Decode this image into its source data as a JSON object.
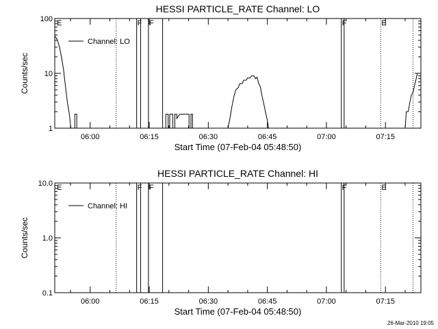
{
  "footer": {
    "timestamp": "26-Mar-2010 19:05"
  },
  "chart_data": [
    {
      "type": "line",
      "title": "HESSI PARTICLE_RATE Channel: LO",
      "xlabel": "Start Time (07-Feb-04 05:48:50)",
      "ylabel": "Counts/sec",
      "yscale": "log",
      "ylim": [
        1,
        100
      ],
      "xlim_minutes": [
        -9,
        84
      ],
      "x_ticks": [
        {
          "t": 0,
          "label": "06:00"
        },
        {
          "t": 15,
          "label": "06:15"
        },
        {
          "t": 30,
          "label": "06:30"
        },
        {
          "t": 45,
          "label": "06:45"
        },
        {
          "t": 60,
          "label": "07:00"
        },
        {
          "t": 75,
          "label": "07:15"
        }
      ],
      "y_ticks": [
        {
          "v": 1,
          "label": "1"
        },
        {
          "v": 10,
          "label": "10"
        },
        {
          "v": 100,
          "label": "100"
        }
      ],
      "legend": {
        "position": "top-left",
        "entries": [
          "Channel: LO"
        ]
      },
      "flags": [
        {
          "t": -8.6,
          "label": "E",
          "style": "none"
        },
        {
          "t": 6.6,
          "label": "",
          "style": "dotted"
        },
        {
          "t": 11.8,
          "label": "F",
          "style": "solid"
        },
        {
          "t": 12.8,
          "label": "",
          "style": "solid"
        },
        {
          "t": 14.8,
          "label": "F",
          "style": "solid"
        },
        {
          "t": 18.4,
          "label": "",
          "style": "solid"
        },
        {
          "t": 63.8,
          "label": "F",
          "style": "solid"
        },
        {
          "t": 64.5,
          "label": "",
          "style": "solid"
        },
        {
          "t": 73.8,
          "label": "E",
          "style": "dotted"
        },
        {
          "t": 82.0,
          "label": "",
          "style": "dotted"
        }
      ],
      "series": [
        {
          "segments": [
            [
              [
                -9,
                48
              ],
              [
                -8.7,
                45
              ],
              [
                -8.3,
                40
              ],
              [
                -7.8,
                30
              ],
              [
                -7.3,
                20
              ],
              [
                -6.8,
                12
              ],
              [
                -6.3,
                6
              ],
              [
                -5.8,
                3
              ],
              [
                -5.3,
                1.8
              ],
              [
                -4.9,
                1
              ]
            ],
            [
              [
                -3.9,
                1
              ],
              [
                -3.9,
                1.8
              ],
              [
                -3.4,
                1.8
              ],
              [
                -3.4,
                1
              ]
            ],
            [
              [
                19.2,
                1
              ],
              [
                19.2,
                1.8
              ],
              [
                19.8,
                1.8
              ],
              [
                19.8,
                1
              ],
              [
                20.2,
                1
              ],
              [
                20.2,
                1.8
              ],
              [
                21.0,
                1.8
              ],
              [
                21.0,
                1
              ],
              [
                21.5,
                1
              ],
              [
                21.5,
                1.8
              ],
              [
                22.0,
                1.8
              ],
              [
                22.0,
                1.5
              ],
              [
                22.8,
                1.8
              ],
              [
                23.8,
                1.8
              ],
              [
                24.6,
                1.8
              ],
              [
                25.1,
                1.8
              ],
              [
                25.1,
                1
              ],
              [
                25.6,
                1
              ],
              [
                25.6,
                1.8
              ],
              [
                26.0,
                1.8
              ],
              [
                26.0,
                1
              ]
            ],
            [
              [
                35.0,
                1
              ],
              [
                35.5,
                1.5
              ],
              [
                36.0,
                2.5
              ],
              [
                36.6,
                4
              ],
              [
                37.0,
                5
              ],
              [
                37.6,
                5.5
              ],
              [
                38.0,
                6.5
              ],
              [
                38.6,
                6.5
              ],
              [
                39.0,
                7.5
              ],
              [
                39.6,
                7.5
              ],
              [
                40.0,
                8.2
              ],
              [
                40.6,
                8.2
              ],
              [
                41.0,
                9
              ],
              [
                41.6,
                9
              ],
              [
                42.0,
                8
              ],
              [
                42.4,
                8.5
              ],
              [
                42.8,
                6.5
              ],
              [
                43.2,
                5.8
              ],
              [
                43.6,
                4
              ],
              [
                44.0,
                3
              ],
              [
                44.5,
                2
              ],
              [
                45.0,
                1.4
              ],
              [
                45.3,
                1
              ]
            ],
            [
              [
                80.0,
                1
              ],
              [
                80.3,
                2
              ],
              [
                80.8,
                2
              ],
              [
                81.2,
                3
              ],
              [
                81.6,
                4
              ],
              [
                82.0,
                4.5
              ],
              [
                82.4,
                6
              ],
              [
                82.8,
                8
              ],
              [
                83.1,
                10
              ]
            ]
          ]
        }
      ]
    },
    {
      "type": "line",
      "title": "HESSI PARTICLE_RATE Channel: HI",
      "xlabel": "Start Time (07-Feb-04 05:48:50)",
      "ylabel": "Counts/sec",
      "yscale": "log",
      "ylim": [
        0.1,
        10
      ],
      "xlim_minutes": [
        -9,
        84
      ],
      "x_ticks": [
        {
          "t": 0,
          "label": "06:00"
        },
        {
          "t": 15,
          "label": "06:15"
        },
        {
          "t": 30,
          "label": "06:30"
        },
        {
          "t": 45,
          "label": "06:45"
        },
        {
          "t": 60,
          "label": "07:00"
        },
        {
          "t": 75,
          "label": "07:15"
        }
      ],
      "y_ticks": [
        {
          "v": 0.1,
          "label": "0.1"
        },
        {
          "v": 1,
          "label": "1.0"
        },
        {
          "v": 10,
          "label": "10.0"
        }
      ],
      "legend": {
        "position": "top-left",
        "entries": [
          "Channel: HI"
        ]
      },
      "flags": [
        {
          "t": -8.6,
          "label": "E",
          "style": "none"
        },
        {
          "t": 6.6,
          "label": "",
          "style": "dotted"
        },
        {
          "t": 11.8,
          "label": "F",
          "style": "solid"
        },
        {
          "t": 12.8,
          "label": "",
          "style": "solid"
        },
        {
          "t": 14.8,
          "label": "F",
          "style": "solid"
        },
        {
          "t": 18.4,
          "label": "",
          "style": "solid"
        },
        {
          "t": 63.8,
          "label": "F",
          "style": "solid"
        },
        {
          "t": 64.5,
          "label": "",
          "style": "solid"
        },
        {
          "t": 73.8,
          "label": "E",
          "style": "dotted"
        },
        {
          "t": 82.0,
          "label": "",
          "style": "dotted"
        }
      ],
      "series": []
    }
  ]
}
